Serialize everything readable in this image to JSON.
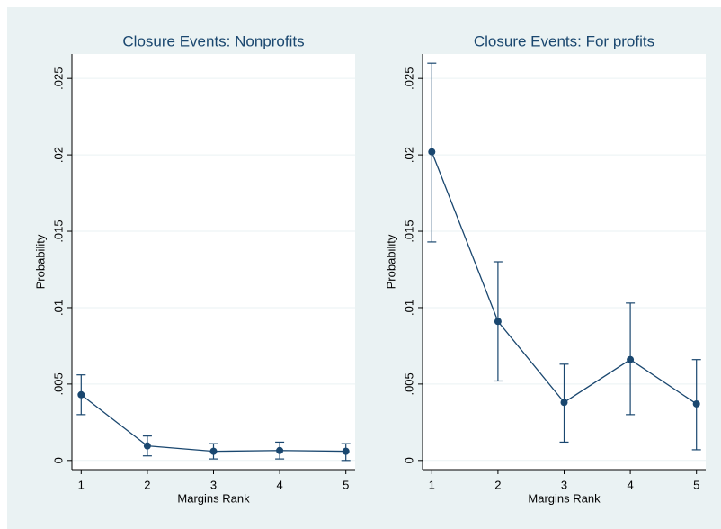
{
  "chart_data": [
    {
      "type": "line",
      "title": "Closure Events: Nonprofits",
      "xlabel": "Margins Rank",
      "ylabel": "Probability",
      "x": [
        1,
        2,
        3,
        4,
        5
      ],
      "series": [
        {
          "color": "#1a476f",
          "values": [
            0.0043,
            0.00095,
            0.0006,
            0.00065,
            0.0006
          ],
          "lower": [
            0.003,
            0.0003,
            0.0001,
            0.0001,
            0.0
          ],
          "upper": [
            0.0056,
            0.0016,
            0.0011,
            0.0012,
            0.0011
          ]
        }
      ],
      "xlim": [
        0.86,
        5.14
      ],
      "xticks": [
        1,
        2,
        3,
        4,
        5
      ],
      "ylim": [
        -0.0006,
        0.0266
      ],
      "yticks": [
        0,
        {
          "value": 0.005,
          "label": ".005"
        },
        {
          "value": 0.01,
          "label": ".01"
        },
        {
          "value": 0.015,
          "label": ".015"
        },
        {
          "value": 0.02,
          "label": ".02"
        },
        {
          "value": 0.025,
          "label": ".025"
        }
      ],
      "grid": true
    },
    {
      "type": "line",
      "title": "Closure Events: For profits",
      "xlabel": "Margins Rank",
      "ylabel": "Probability",
      "x": [
        1,
        2,
        3,
        4,
        5
      ],
      "series": [
        {
          "color": "#1a476f",
          "values": [
            0.0202,
            0.0091,
            0.0038,
            0.0066,
            0.0037
          ],
          "lower": [
            0.0143,
            0.0052,
            0.0012,
            0.003,
            0.0007
          ],
          "upper": [
            0.026,
            0.013,
            0.0063,
            0.0103,
            0.0066
          ]
        }
      ],
      "xlim": [
        0.86,
        5.14
      ],
      "xticks": [
        1,
        2,
        3,
        4,
        5
      ],
      "ylim": [
        -0.0006,
        0.0266
      ],
      "yticks": [
        0,
        {
          "value": 0.005,
          "label": ".005"
        },
        {
          "value": 0.01,
          "label": ".01"
        },
        {
          "value": 0.015,
          "label": ".015"
        },
        {
          "value": 0.02,
          "label": ".02"
        },
        {
          "value": 0.025,
          "label": ".025"
        }
      ],
      "grid": true
    }
  ]
}
